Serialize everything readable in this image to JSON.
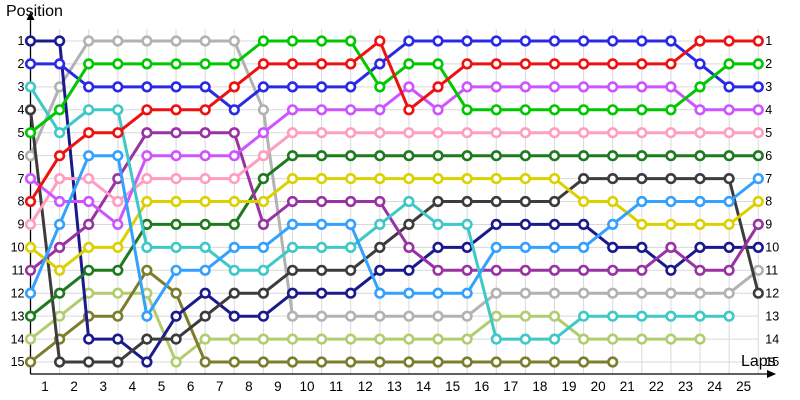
{
  "title": "Position",
  "x_axis_label": "Laps",
  "chart_data": {
    "type": "line",
    "title": "Position",
    "xlabel": "Laps",
    "ylabel": "Position",
    "x_ticks": [
      1,
      2,
      3,
      4,
      5,
      6,
      7,
      8,
      9,
      10,
      11,
      12,
      13,
      14,
      15,
      16,
      17,
      18,
      19,
      20,
      21,
      22,
      23,
      24,
      25
    ],
    "left_ticks": [
      1,
      2,
      3,
      4,
      5,
      6,
      7,
      8,
      9,
      10,
      11,
      12,
      13,
      14,
      15
    ],
    "right_ticks": [
      1,
      2,
      3,
      4,
      5,
      6,
      7,
      8,
      9,
      10,
      11,
      12,
      13,
      14,
      15
    ],
    "x": [
      0,
      1,
      2,
      3,
      4,
      5,
      6,
      7,
      8,
      9,
      10,
      11,
      12,
      13,
      14,
      15,
      16,
      17,
      18,
      19,
      20,
      21,
      22,
      23,
      24,
      25
    ],
    "ylim": [
      1,
      15
    ],
    "grid": true,
    "legend": "none",
    "marker": {
      "shape": "circle",
      "fill": "#ffffff",
      "radius": 4.3,
      "stroke_width": 2.6
    },
    "line_width": 3,
    "grid_color": "#d9d9d9",
    "axis_color": "#000000",
    "series": [
      {
        "name": "silver",
        "color": "#b2b2b2",
        "positions": [
          6,
          3,
          1,
          1,
          1,
          1,
          1,
          1,
          4,
          13,
          13,
          13,
          13,
          13,
          13,
          13,
          12,
          12,
          12,
          12,
          12,
          12,
          12,
          12,
          12,
          11
        ]
      },
      {
        "name": "yellow-green",
        "color": "#b2cc70",
        "positions": [
          14,
          13,
          12,
          12,
          12,
          15,
          14,
          14,
          14,
          14,
          14,
          14,
          14,
          14,
          14,
          14,
          13,
          13,
          13,
          14,
          14,
          14,
          14,
          14,
          null,
          null
        ]
      },
      {
        "name": "olive",
        "color": "#7d7d2e",
        "positions": [
          15,
          14,
          13,
          13,
          11,
          12,
          15,
          15,
          15,
          15,
          15,
          15,
          15,
          15,
          15,
          15,
          15,
          15,
          15,
          15,
          15,
          null,
          null,
          null,
          null,
          null
        ]
      },
      {
        "name": "navy",
        "color": "#1a1a8c",
        "positions": [
          1,
          1,
          14,
          14,
          15,
          13,
          12,
          13,
          13,
          12,
          12,
          12,
          11,
          11,
          10,
          10,
          9,
          9,
          9,
          9,
          10,
          10,
          11,
          10,
          10,
          10
        ]
      },
      {
        "name": "charcoal",
        "color": "#3c3c3c",
        "positions": [
          4,
          15,
          15,
          15,
          14,
          14,
          13,
          12,
          12,
          11,
          11,
          11,
          10,
          9,
          8,
          8,
          8,
          8,
          8,
          7,
          7,
          7,
          7,
          7,
          7,
          12
        ]
      },
      {
        "name": "dark-green",
        "color": "#1f7a1f",
        "positions": [
          13,
          12,
          11,
          11,
          9,
          9,
          9,
          9,
          7,
          6,
          6,
          6,
          6,
          6,
          6,
          6,
          6,
          6,
          6,
          6,
          6,
          6,
          6,
          6,
          6,
          6
        ]
      },
      {
        "name": "purple",
        "color": "#9933a3",
        "positions": [
          11,
          10,
          9,
          7,
          5,
          5,
          5,
          5,
          9,
          8,
          8,
          8,
          8,
          10,
          11,
          11,
          11,
          11,
          11,
          11,
          11,
          11,
          10,
          11,
          11,
          9
        ]
      },
      {
        "name": "pink",
        "color": "#ff9ec0",
        "positions": [
          9,
          7,
          7,
          8,
          7,
          7,
          7,
          7,
          6,
          5,
          5,
          5,
          5,
          5,
          5,
          5,
          5,
          5,
          5,
          5,
          5,
          5,
          5,
          5,
          5,
          5
        ]
      },
      {
        "name": "yellow",
        "color": "#ddd000",
        "positions": [
          10,
          11,
          10,
          10,
          8,
          8,
          8,
          8,
          8,
          7,
          7,
          7,
          7,
          7,
          7,
          7,
          7,
          7,
          7,
          8,
          8,
          9,
          9,
          9,
          9,
          8
        ]
      },
      {
        "name": "violet",
        "color": "#cc55ff",
        "positions": [
          7,
          8,
          8,
          9,
          6,
          6,
          6,
          6,
          5,
          4,
          4,
          4,
          4,
          3,
          4,
          3,
          3,
          3,
          3,
          3,
          3,
          3,
          3,
          4,
          4,
          4
        ]
      },
      {
        "name": "cyan",
        "color": "#3fc8c8",
        "positions": [
          3,
          5,
          4,
          4,
          10,
          10,
          10,
          11,
          11,
          10,
          10,
          10,
          9,
          8,
          9,
          9,
          14,
          14,
          14,
          13,
          13,
          13,
          13,
          13,
          13,
          null
        ]
      },
      {
        "name": "dodger-blue",
        "color": "#33a1fd",
        "positions": [
          12,
          9,
          6,
          6,
          13,
          11,
          11,
          10,
          10,
          9,
          9,
          9,
          12,
          12,
          12,
          12,
          10,
          10,
          10,
          10,
          9,
          8,
          8,
          8,
          8,
          7
        ]
      },
      {
        "name": "blue",
        "color": "#2a2ae6",
        "positions": [
          2,
          2,
          3,
          3,
          3,
          3,
          3,
          4,
          3,
          3,
          3,
          3,
          2,
          1,
          1,
          1,
          1,
          1,
          1,
          1,
          1,
          1,
          1,
          2,
          3,
          3
        ]
      },
      {
        "name": "green",
        "color": "#00c800",
        "positions": [
          5,
          4,
          2,
          2,
          2,
          2,
          2,
          2,
          1,
          1,
          1,
          1,
          3,
          2,
          2,
          4,
          4,
          4,
          4,
          4,
          4,
          4,
          4,
          3,
          2,
          2
        ]
      },
      {
        "name": "red",
        "color": "#ee1111",
        "positions": [
          8,
          6,
          5,
          5,
          4,
          4,
          4,
          3,
          2,
          2,
          2,
          2,
          1,
          4,
          3,
          2,
          2,
          2,
          2,
          2,
          2,
          2,
          2,
          1,
          1,
          1
        ]
      }
    ]
  }
}
